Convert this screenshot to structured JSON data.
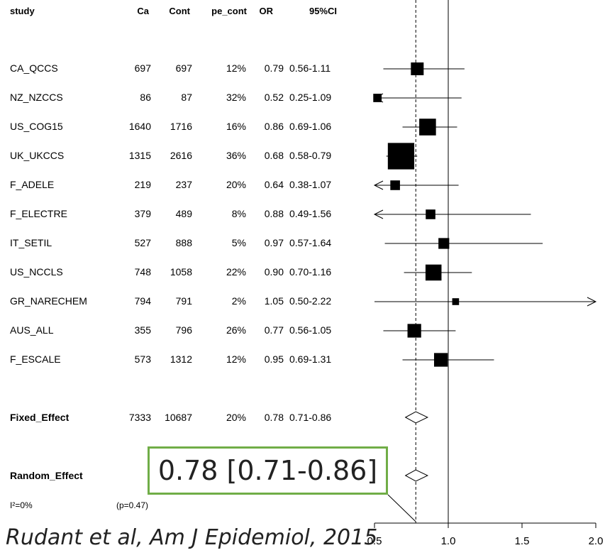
{
  "chart_data": {
    "type": "forest",
    "columns": [
      "study",
      "Ca",
      "Cont",
      "pe_cont",
      "OR",
      "95%CI"
    ],
    "rows": [
      {
        "study": "CA_QCCS",
        "ca": "697",
        "cont": "697",
        "pe": "12%",
        "or_text": "0.79",
        "ci_text": "0.56-1.11",
        "or": 0.79,
        "lo": 0.56,
        "hi": 1.11,
        "weight": 7
      },
      {
        "study": "NZ_NZCCS",
        "ca": "86",
        "cont": "87",
        "pe": "32%",
        "or_text": "0.52",
        "ci_text": "0.25-1.09",
        "or": 0.52,
        "lo": 0.25,
        "hi": 1.09,
        "weight": 3
      },
      {
        "study": "US_COG15",
        "ca": "1640",
        "cont": "1716",
        "pe": "16%",
        "or_text": "0.86",
        "ci_text": "0.69-1.06",
        "or": 0.86,
        "lo": 0.69,
        "hi": 1.06,
        "weight": 12
      },
      {
        "study": "UK_UKCCS",
        "ca": "1315",
        "cont": "2616",
        "pe": "36%",
        "or_text": "0.68",
        "ci_text": "0.58-0.79",
        "or": 0.68,
        "lo": 0.58,
        "hi": 0.79,
        "weight": 30
      },
      {
        "study": "F_ADELE",
        "ca": "219",
        "cont": "237",
        "pe": "20%",
        "or_text": "0.64",
        "ci_text": "0.38-1.07",
        "or": 0.64,
        "lo": 0.38,
        "hi": 1.07,
        "weight": 4
      },
      {
        "study": "F_ELECTRE",
        "ca": "379",
        "cont": "489",
        "pe": "8%",
        "or_text": "0.88",
        "ci_text": "0.49-1.56",
        "or": 0.88,
        "lo": 0.49,
        "hi": 1.56,
        "weight": 4
      },
      {
        "study": "IT_SETIL",
        "ca": "527",
        "cont": "888",
        "pe": "5%",
        "or_text": "0.97",
        "ci_text": "0.57-1.64",
        "or": 0.97,
        "lo": 0.57,
        "hi": 1.64,
        "weight": 5
      },
      {
        "study": "US_NCCLS",
        "ca": "748",
        "cont": "1058",
        "pe": "22%",
        "or_text": "0.90",
        "ci_text": "0.70-1.16",
        "or": 0.9,
        "lo": 0.7,
        "hi": 1.16,
        "weight": 11
      },
      {
        "study": "GR_NARECHEM",
        "ca": "794",
        "cont": "791",
        "pe": "2%",
        "or_text": "1.05",
        "ci_text": "0.50-2.22",
        "or": 1.05,
        "lo": 0.5,
        "hi": 2.22,
        "weight": 2
      },
      {
        "study": "AUS_ALL",
        "ca": "355",
        "cont": "796",
        "pe": "26%",
        "or_text": "0.77",
        "ci_text": "0.56-1.05",
        "or": 0.77,
        "lo": 0.56,
        "hi": 1.05,
        "weight": 8
      },
      {
        "study": "F_ESCALE",
        "ca": "573",
        "cont": "1312",
        "pe": "12%",
        "or_text": "0.95",
        "ci_text": "0.69-1.31",
        "or": 0.95,
        "lo": 0.69,
        "hi": 1.31,
        "weight": 8
      }
    ],
    "fixed": {
      "label": "Fixed_Effect",
      "ca": "7333",
      "cont": "10687",
      "pe": "20%",
      "or_text": "0.78",
      "ci_text": "0.71-0.86",
      "or": 0.78,
      "lo": 0.71,
      "hi": 0.86
    },
    "random": {
      "label": "Random_Effect",
      "or": 0.78,
      "lo": 0.71,
      "hi": 0.86
    },
    "heterogeneity": {
      "i2": "I²=0%",
      "p": "(p=0.47)"
    },
    "xlim": [
      0.5,
      2.0
    ],
    "xticks": [
      0.5,
      1.0,
      1.5,
      2.0
    ],
    "xtick_labels": [
      "0.5",
      "1.0",
      "1.5",
      "2.0"
    ],
    "reference_line": 1.0,
    "summary_line": 0.78,
    "x_scale": "linear",
    "grid": false
  },
  "callout": "0.78  [0.71-0.86]",
  "citation": "Rudant et al, Am J Epidemiol, 2015"
}
